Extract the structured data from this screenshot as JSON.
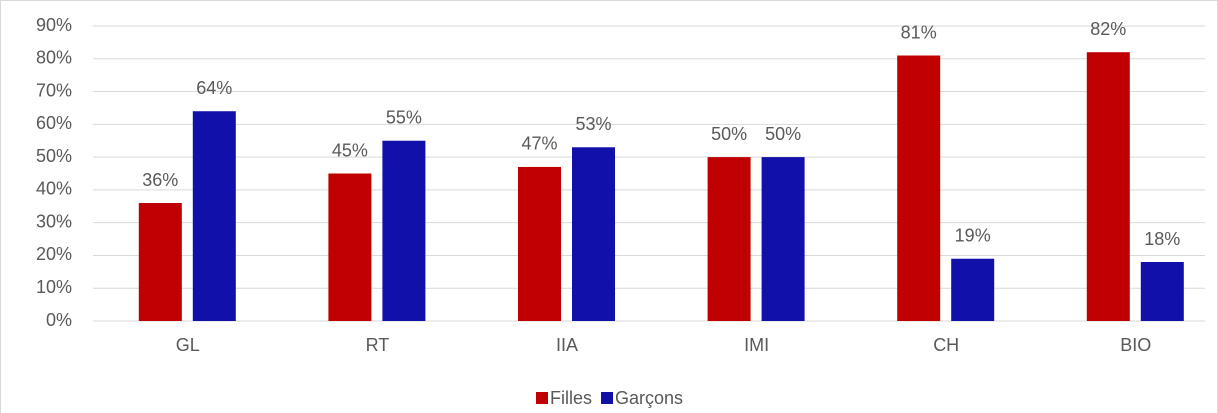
{
  "chart_data": {
    "type": "bar",
    "categories": [
      "GL",
      "RT",
      "IIA",
      "IMI",
      "CH",
      "BIO"
    ],
    "series": [
      {
        "name": "Filles",
        "color": "#c00000",
        "values": [
          36,
          45,
          47,
          50,
          81,
          82
        ],
        "value_labels": [
          "36%",
          "45%",
          "47%",
          "50%",
          "81%",
          "82%"
        ]
      },
      {
        "name": "Garçons",
        "color": "#1111aa",
        "values": [
          64,
          55,
          53,
          50,
          19,
          18
        ],
        "value_labels": [
          "64%",
          "55%",
          "53%",
          "50%",
          "19%",
          "18%"
        ]
      }
    ],
    "ylim": [
      0,
      90
    ],
    "yticks": [
      {
        "value": 0,
        "label": "0%"
      },
      {
        "value": 10,
        "label": "10%"
      },
      {
        "value": 20,
        "label": "20%"
      },
      {
        "value": 30,
        "label": "30%"
      },
      {
        "value": 40,
        "label": "40%"
      },
      {
        "value": 50,
        "label": "50%"
      },
      {
        "value": 60,
        "label": "60%"
      },
      {
        "value": 70,
        "label": "70%"
      },
      {
        "value": 80,
        "label": "80%"
      },
      {
        "value": 90,
        "label": "90%"
      }
    ],
    "grid": true,
    "legend": "bottom"
  }
}
